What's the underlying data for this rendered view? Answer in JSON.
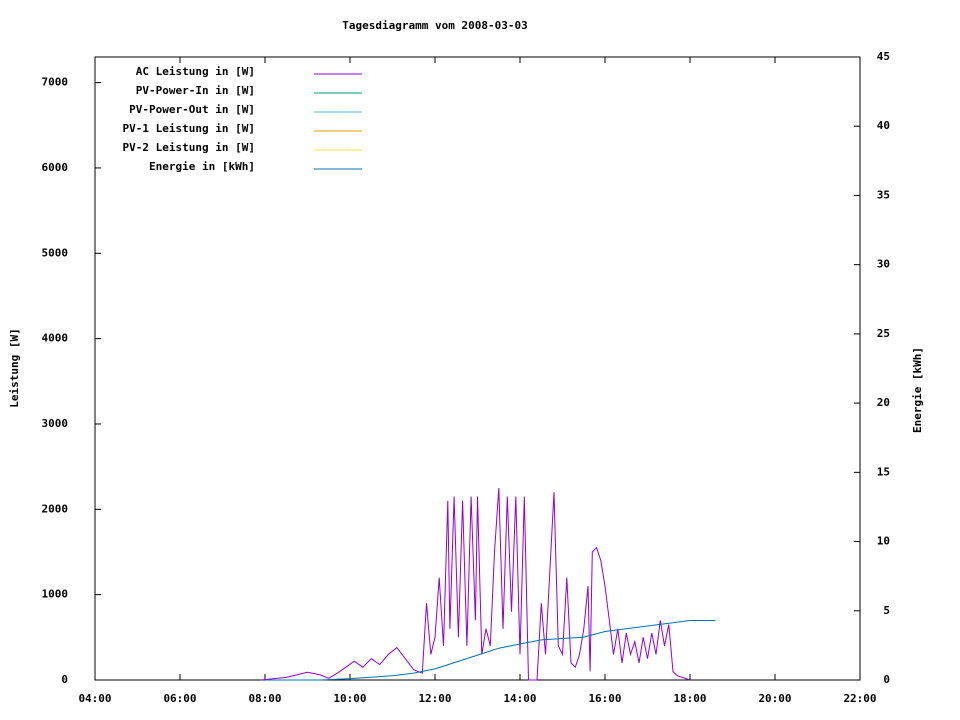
{
  "chart_data": {
    "type": "line",
    "title": "Tagesdiagramm vom 2008-03-03",
    "ylabel": "Leistung [W]",
    "y2label": "Energie [kWh]",
    "xlim": [
      4,
      22
    ],
    "xticks": [
      {
        "value": 4,
        "label": "04:00"
      },
      {
        "value": 6,
        "label": "06:00"
      },
      {
        "value": 8,
        "label": "08:00"
      },
      {
        "value": 10,
        "label": "10:00"
      },
      {
        "value": 12,
        "label": "12:00"
      },
      {
        "value": 14,
        "label": "14:00"
      },
      {
        "value": 16,
        "label": "16:00"
      },
      {
        "value": 18,
        "label": "18:00"
      },
      {
        "value": 20,
        "label": "20:00"
      },
      {
        "value": 22,
        "label": "22:00"
      }
    ],
    "ylim": [
      0,
      7300
    ],
    "yticks": [
      0,
      1000,
      2000,
      3000,
      4000,
      5000,
      6000,
      7000
    ],
    "y2lim": [
      0,
      45
    ],
    "y2ticks": [
      0,
      5,
      10,
      15,
      20,
      25,
      30,
      35,
      40,
      45
    ],
    "legend": "top-left",
    "series": [
      {
        "name": "AC Leistung in [W]",
        "color": "#9400d3",
        "x": [
          7.9,
          8.5,
          9.0,
          9.3,
          9.5,
          9.7,
          9.9,
          10.1,
          10.3,
          10.5,
          10.7,
          10.9,
          11.1,
          11.3,
          11.5,
          11.7,
          11.8,
          11.9,
          12.0,
          12.1,
          12.2,
          12.3,
          12.35,
          12.45,
          12.55,
          12.65,
          12.75,
          12.85,
          12.95,
          13.0,
          13.1,
          13.2,
          13.3,
          13.4,
          13.5,
          13.6,
          13.7,
          13.8,
          13.9,
          14.0,
          14.1,
          14.2,
          14.4,
          14.5,
          14.6,
          14.8,
          14.9,
          15.0,
          15.1,
          15.2,
          15.3,
          15.4,
          15.5,
          15.6,
          15.65,
          15.7,
          15.8,
          15.9,
          16.0,
          16.1,
          16.2,
          16.3,
          16.4,
          16.5,
          16.6,
          16.7,
          16.8,
          16.9,
          17.0,
          17.1,
          17.2,
          17.3,
          17.4,
          17.5,
          17.6,
          17.7,
          18.0
        ],
        "values": [
          0,
          30,
          90,
          60,
          20,
          80,
          150,
          220,
          150,
          250,
          180,
          300,
          380,
          250,
          120,
          80,
          900,
          300,
          500,
          1200,
          400,
          2100,
          600,
          2150,
          500,
          2100,
          400,
          2150,
          700,
          2150,
          300,
          600,
          400,
          1500,
          2250,
          600,
          2150,
          800,
          2150,
          300,
          2150,
          0,
          0,
          900,
          300,
          2200,
          400,
          300,
          1200,
          200,
          150,
          300,
          600,
          1100,
          100,
          1500,
          1550,
          1400,
          1100,
          700,
          300,
          600,
          200,
          550,
          300,
          450,
          200,
          500,
          250,
          550,
          300,
          700,
          400,
          650,
          100,
          50,
          0
        ]
      },
      {
        "name": "PV-Power-In in [W]",
        "color": "#009e73",
        "x": [],
        "values": []
      },
      {
        "name": "PV-Power-Out in [W]",
        "color": "#56b4e9",
        "x": [],
        "values": []
      },
      {
        "name": "PV-1 Leistung in [W]",
        "color": "#e69f00",
        "x": [],
        "values": []
      },
      {
        "name": "PV-2 Leistung in [W]",
        "color": "#f0e442",
        "x": [],
        "values": []
      },
      {
        "name": "Energie in [kWh]",
        "color": "#0072b2",
        "axis": "y2",
        "x": [
          8.0,
          9.3,
          10.0,
          11.0,
          11.5,
          12.0,
          12.5,
          13.0,
          13.5,
          14.0,
          14.5,
          15.0,
          15.5,
          16.0,
          16.5,
          17.0,
          17.5,
          18.0,
          18.6
        ],
        "values": [
          0,
          0,
          0.1,
          0.3,
          0.5,
          0.8,
          1.3,
          1.8,
          2.3,
          2.6,
          2.9,
          3.0,
          3.1,
          3.5,
          3.7,
          3.9,
          4.1,
          4.3,
          4.3
        ]
      }
    ]
  }
}
